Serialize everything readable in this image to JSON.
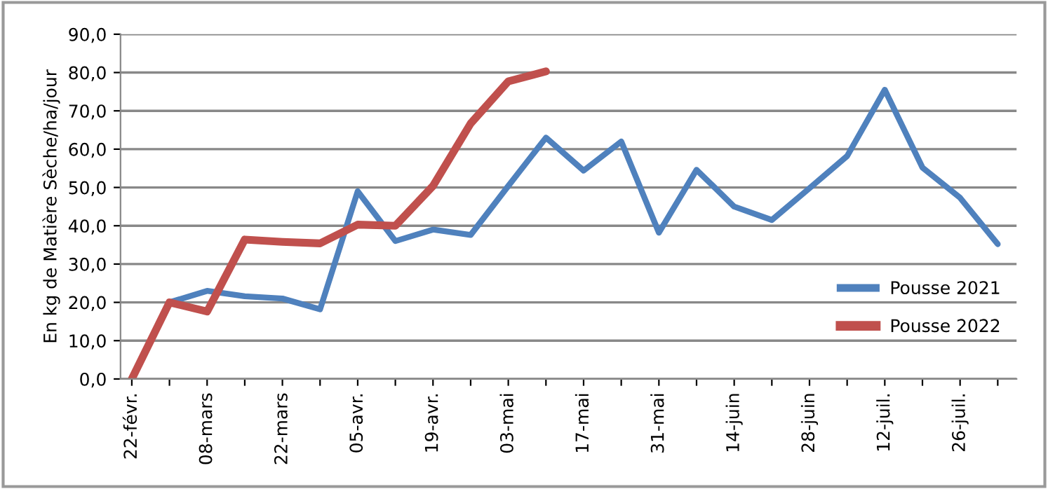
{
  "chart_data": {
    "type": "line",
    "ylabel": "En kg de Matière Sèche/ha/jour",
    "categories": [
      "22-févr.",
      null,
      "08-mars",
      null,
      "22-mars",
      null,
      "05-avr.",
      null,
      "19-avr.",
      null,
      "03-mai",
      null,
      "17-mai",
      null,
      "31-mai",
      null,
      "14-juin",
      null,
      "28-juin",
      null,
      "12-juil.",
      null,
      "26-juil.",
      null
    ],
    "series": [
      {
        "name": "Pousse 2021",
        "color": "#4f81bd",
        "values": [
          null,
          20,
          23,
          21.6,
          21,
          18.2,
          49,
          36,
          39,
          37.6,
          50.4,
          63,
          54.4,
          62,
          38.2,
          54.6,
          45,
          41.5,
          49.8,
          58.2,
          75.5,
          55.2,
          47.3,
          35.2
        ]
      },
      {
        "name": "Pousse 2022",
        "color": "#c0504d",
        "values": [
          0,
          20,
          17.6,
          36.4,
          35.8,
          35.4,
          40.3,
          40,
          50.4,
          66.7,
          77.7,
          80.3,
          null,
          null,
          null,
          null,
          null,
          null,
          null,
          null,
          null,
          null,
          null,
          null
        ]
      }
    ],
    "ylim": [
      0,
      90
    ],
    "yticks": [
      {
        "value": 0,
        "label": "0,0"
      },
      {
        "value": 10,
        "label": "10,0"
      },
      {
        "value": 20,
        "label": "20,0"
      },
      {
        "value": 30,
        "label": "30,0"
      },
      {
        "value": 40,
        "label": "40,0"
      },
      {
        "value": 50,
        "label": "50,0"
      },
      {
        "value": 60,
        "label": "60,0"
      },
      {
        "value": 70,
        "label": "70,0"
      },
      {
        "value": 80,
        "label": "80,0"
      },
      {
        "value": 90,
        "label": "90,0"
      }
    ],
    "grid": "y",
    "legend": "bottom right",
    "line_style": "solid"
  }
}
